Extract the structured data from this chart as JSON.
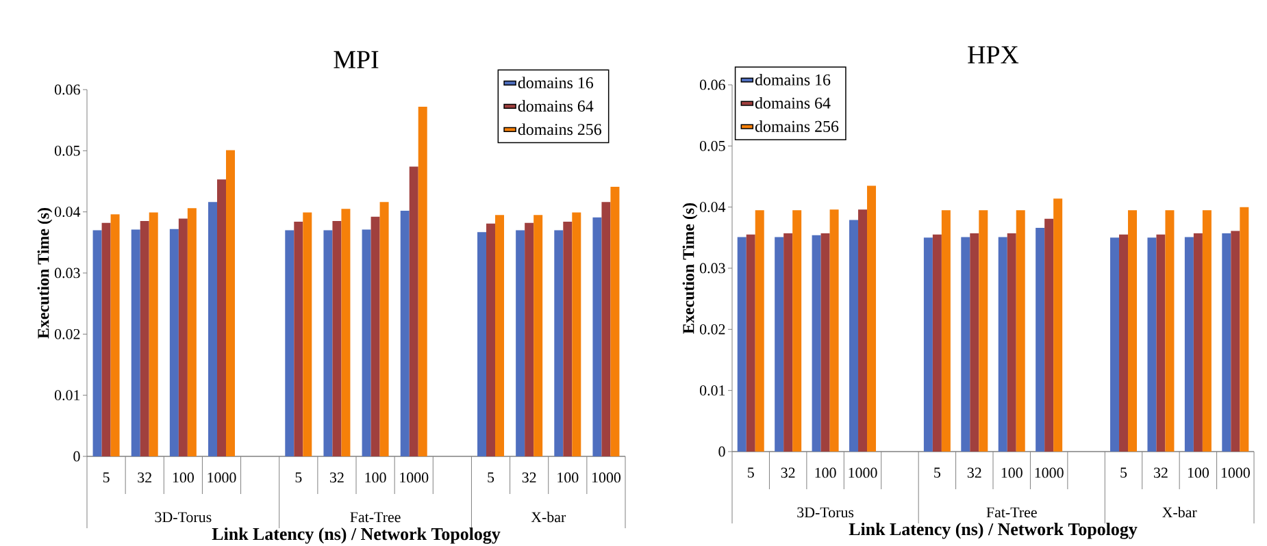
{
  "chart_data": [
    {
      "type": "bar",
      "title": "MPI",
      "xlabel": "Link Latency (ns) / Network Topology",
      "ylabel": "Execution Time (s)",
      "categories": [
        "5",
        "32",
        "100",
        "1000",
        null,
        "5",
        "32",
        "100",
        "1000",
        null,
        "5",
        "32",
        "100",
        "1000"
      ],
      "annotations": [
        "3D-Torus",
        "Fat-Tree",
        "X-bar"
      ],
      "series": [
        {
          "name": "domains 16",
          "color": "#4f6fbf",
          "values": [
            0.037,
            0.0371,
            0.0372,
            0.0416,
            null,
            0.037,
            0.037,
            0.0371,
            0.0402,
            null,
            0.0367,
            0.037,
            0.037,
            0.0391
          ]
        },
        {
          "name": "domains 64",
          "color": "#a0403e",
          "values": [
            0.0382,
            0.0385,
            0.0389,
            0.0453,
            null,
            0.0384,
            0.0385,
            0.0392,
            0.0474,
            null,
            0.0381,
            0.0382,
            0.0384,
            0.0416
          ]
        },
        {
          "name": "domains 256",
          "color": "#f5800a",
          "values": [
            0.0396,
            0.0399,
            0.0406,
            0.0501,
            null,
            0.0399,
            0.0405,
            0.0416,
            0.0572,
            null,
            0.0395,
            0.0395,
            0.0399,
            0.0441
          ]
        }
      ],
      "ylim": [
        0,
        0.06
      ],
      "yticks": [
        0,
        0.01,
        0.02,
        0.03,
        0.04,
        0.05,
        0.06
      ],
      "grid": false,
      "legend": "top right"
    },
    {
      "type": "bar",
      "title": "HPX",
      "xlabel": "Link Latency (ns) / Network Topology",
      "ylabel": "Execution Time (s)",
      "categories": [
        "5",
        "32",
        "100",
        "1000",
        null,
        "5",
        "32",
        "100",
        "1000",
        null,
        "5",
        "32",
        "100",
        "1000"
      ],
      "annotations": [
        "3D-Torus",
        "Fat-Tree",
        "X-bar"
      ],
      "series": [
        {
          "name": "domains 16",
          "color": "#4f6fbf",
          "values": [
            0.0351,
            0.0351,
            0.0354,
            0.0379,
            null,
            0.035,
            0.0351,
            0.0351,
            0.0366,
            null,
            0.035,
            0.035,
            0.0351,
            0.0357
          ]
        },
        {
          "name": "domains 64",
          "color": "#a0403e",
          "values": [
            0.0355,
            0.0357,
            0.0357,
            0.0396,
            null,
            0.0355,
            0.0357,
            0.0357,
            0.0381,
            null,
            0.0355,
            0.0355,
            0.0357,
            0.0361
          ]
        },
        {
          "name": "domains 256",
          "color": "#f5800a",
          "values": [
            0.0395,
            0.0395,
            0.0396,
            0.0435,
            null,
            0.0395,
            0.0395,
            0.0395,
            0.0414,
            null,
            0.0395,
            0.0395,
            0.0395,
            0.04
          ]
        }
      ],
      "ylim": [
        0,
        0.06
      ],
      "yticks": [
        0,
        0.01,
        0.02,
        0.03,
        0.04,
        0.05,
        0.06
      ],
      "grid": false,
      "legend": "top left"
    }
  ]
}
